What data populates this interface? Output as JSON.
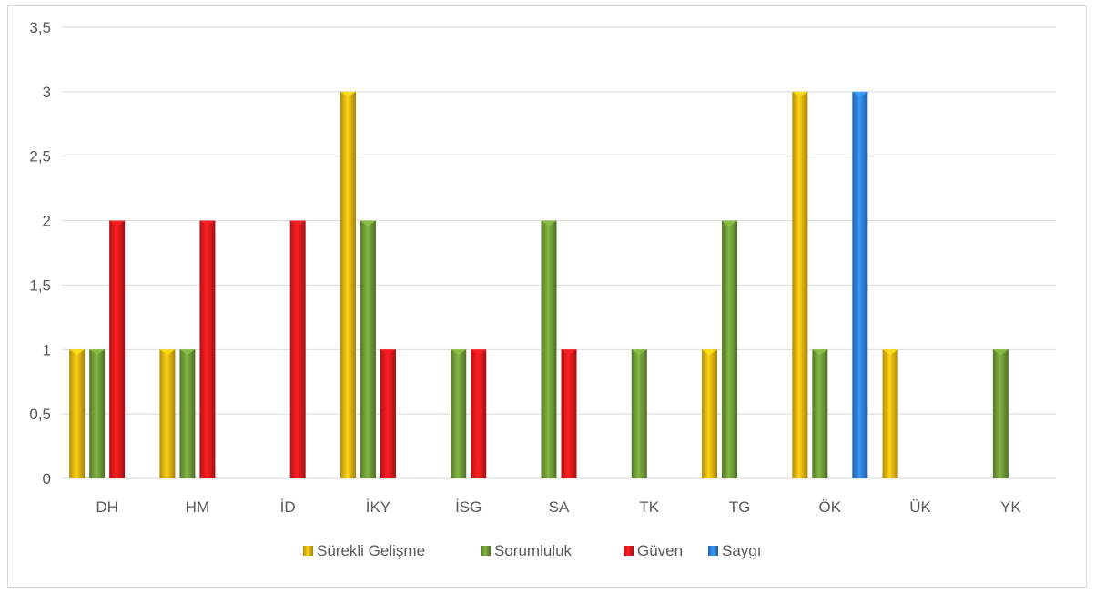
{
  "chart_data": {
    "type": "bar",
    "title": "",
    "xlabel": "",
    "ylabel": "",
    "categories": [
      "DH",
      "HM",
      "İD",
      "İKY",
      "İSG",
      "SA",
      "TK",
      "TG",
      "ÖK",
      "ÜK",
      "YK"
    ],
    "series": [
      {
        "name": "Sürekli Gelişme",
        "color": "#e6b311",
        "values": [
          1,
          1,
          0,
          3,
          0,
          0,
          0,
          1,
          3,
          1,
          0
        ]
      },
      {
        "name": "Sorumluluk",
        "color": "#6f9a37",
        "values": [
          1,
          1,
          0,
          2,
          1,
          2,
          1,
          2,
          1,
          0,
          1
        ]
      },
      {
        "name": "Güven",
        "color": "#e0191c",
        "values": [
          2,
          2,
          2,
          1,
          1,
          1,
          0,
          0,
          0,
          0,
          0
        ]
      },
      {
        "name": "Saygı",
        "color": "#2f7fd6",
        "values": [
          0,
          0,
          0,
          0,
          0,
          0,
          0,
          0,
          3,
          0,
          0
        ]
      }
    ],
    "ylim": [
      0,
      3.5
    ],
    "yticks": [
      "0",
      "0,5",
      "1",
      "1,5",
      "2",
      "2,5",
      "3",
      "3,5"
    ],
    "grid": true,
    "legend_position": "bottom"
  }
}
